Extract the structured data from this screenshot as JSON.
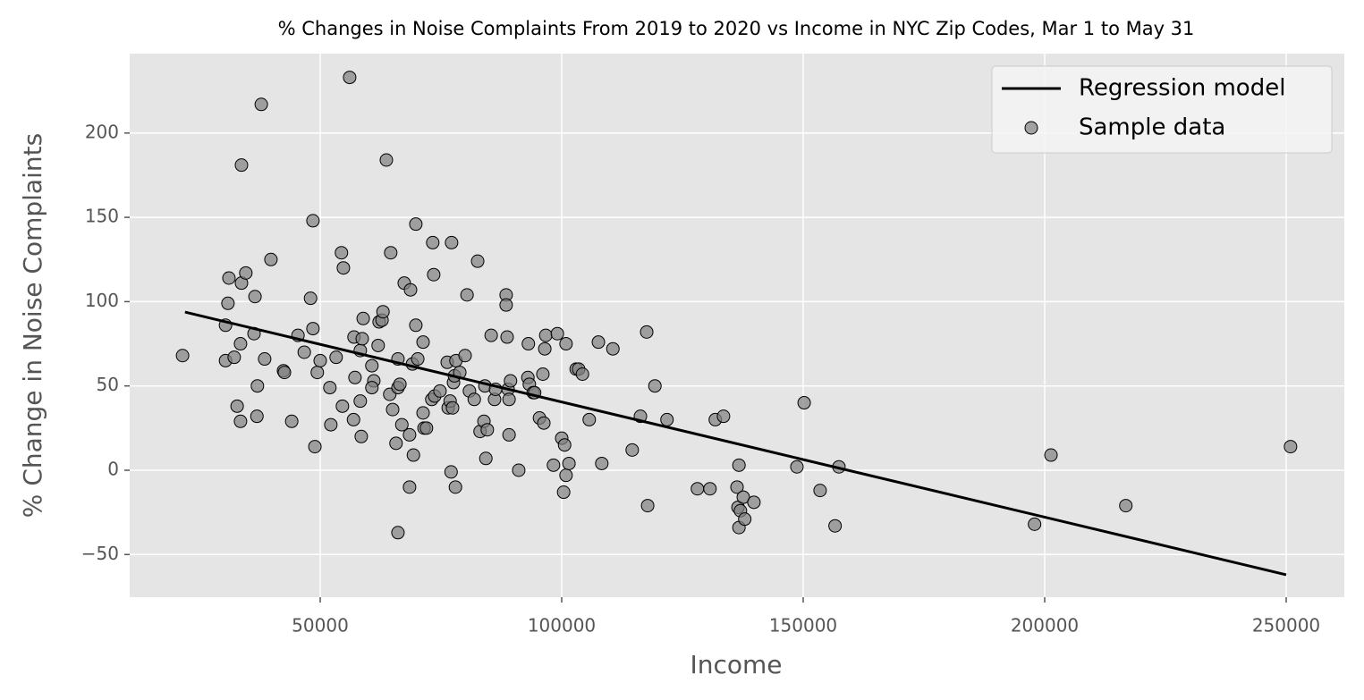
{
  "chart_data": {
    "type": "scatter",
    "title": "% Changes in Noise Complaints From 2019 to 2020 vs Income in NYC Zip Codes, Mar 1 to May 31",
    "xlabel": "Income",
    "ylabel": "% Change in Noise Complaints",
    "xlim": [
      10556,
      262037
    ],
    "ylim": [
      -75.3,
      247.1
    ],
    "xticks": [
      50000,
      100000,
      150000,
      200000,
      250000
    ],
    "yticks": [
      {
        "value": -50,
        "label": "−50"
      },
      0,
      50,
      100,
      150,
      200
    ],
    "grid": true,
    "legend": "upper right",
    "x": [
      21500,
      30400,
      30900,
      31100,
      30400,
      32200,
      32800,
      33500,
      33700,
      33500,
      33700,
      34600,
      36300,
      36500,
      36900,
      37000,
      37800,
      38500,
      39800,
      42400,
      42600,
      44100,
      45400,
      46700,
      48000,
      48500,
      48500,
      48900,
      49400,
      50000,
      52000,
      52200,
      53300,
      54400,
      54800,
      54600,
      56100,
      57000,
      56900,
      57200,
      58300,
      58700,
      58300,
      58500,
      58900,
      60700,
      61100,
      60700,
      62000,
      62200,
      62800,
      63000,
      63700,
      64400,
      64600,
      65000,
      65700,
      66100,
      66100,
      66100,
      66500,
      66900,
      67400,
      68500,
      68500,
      68700,
      69100,
      69300,
      69800,
      69800,
      70200,
      71300,
      71300,
      71500,
      72000,
      73100,
      73300,
      73500,
      73700,
      74800,
      76300,
      76500,
      76900,
      77100,
      77200,
      77400,
      77600,
      77800,
      78000,
      78100,
      78900,
      80000,
      80400,
      80900,
      81900,
      82600,
      83100,
      83900,
      84100,
      84300,
      84600,
      85400,
      86100,
      86300,
      88500,
      88500,
      88700,
      88900,
      89100,
      89100,
      89400,
      91100,
      93100,
      93000,
      93300,
      94100,
      94400,
      95400,
      96100,
      96300,
      96500,
      96700,
      98300,
      99100,
      100000,
      100400,
      100600,
      100900,
      100900,
      101500,
      103000,
      103500,
      104300,
      105700,
      107600,
      108300,
      110600,
      114600,
      116300,
      117600,
      117800,
      119300,
      121800,
      128100,
      130700,
      131800,
      133500,
      136300,
      136500,
      136700,
      136700,
      137000,
      137600,
      137900,
      139800,
      148700,
      150200,
      153500,
      156600,
      157400,
      197900,
      201300,
      216800,
      250900
    ],
    "series": [
      {
        "name": "Regression model",
        "type": "line",
        "color": "#000000",
        "x": [
          22000,
          250000
        ],
        "values": [
          93.8,
          -62
        ]
      },
      {
        "name": "Sample data",
        "type": "scatter",
        "color": "#808080",
        "values": [
          68,
          86,
          99,
          114,
          65,
          67,
          38,
          29,
          111,
          75,
          181,
          117,
          81,
          103,
          32,
          50,
          217,
          66,
          125,
          59,
          58,
          29,
          80,
          70,
          102,
          148,
          84,
          14,
          58,
          65,
          49,
          27,
          67,
          129,
          120,
          38,
          233,
          79,
          30,
          55,
          71,
          78,
          41,
          20,
          90,
          62,
          53,
          49,
          74,
          88,
          89,
          94,
          184,
          45,
          129,
          36,
          16,
          -37,
          66,
          49,
          51,
          27,
          111,
          21,
          -10,
          107,
          63,
          9,
          146,
          86,
          66,
          76,
          34,
          25,
          25,
          42,
          135,
          116,
          44,
          47,
          64,
          37,
          41,
          -1,
          135,
          37,
          52,
          56,
          -10,
          65,
          58,
          68,
          104,
          47,
          42,
          124,
          23,
          29,
          50,
          7,
          24,
          80,
          42,
          48,
          104,
          98,
          79,
          48,
          42,
          21,
          53,
          0,
          75,
          55,
          51,
          46,
          46,
          31,
          57,
          28,
          72,
          80,
          3,
          81,
          19,
          -13,
          15,
          -3,
          75,
          4,
          60,
          60,
          57,
          30,
          76,
          4,
          72,
          12,
          32,
          82,
          -21,
          50,
          30,
          -11,
          -11,
          30,
          32,
          -10,
          -22,
          3,
          -34,
          -24,
          -16,
          -29,
          -19,
          2,
          40,
          -12,
          -33,
          2,
          -32,
          9,
          -21,
          14
        ]
      }
    ]
  }
}
